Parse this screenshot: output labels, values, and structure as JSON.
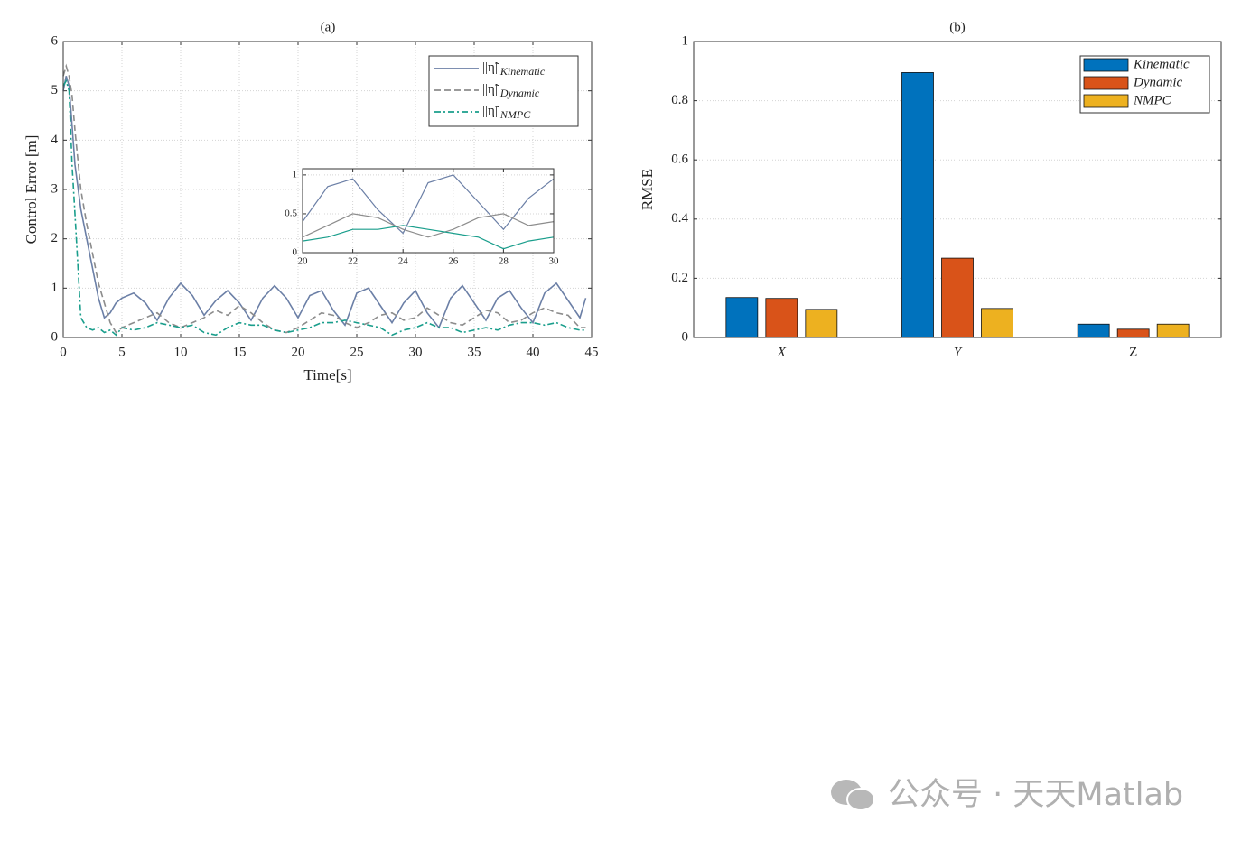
{
  "chart_data": [
    {
      "type": "line",
      "title": "(a)",
      "xlabel": "Time[s]",
      "ylabel": "Control Error [m]",
      "legend_prefix": "||η̃||",
      "legend": "upper right",
      "grid": true,
      "x": [
        0,
        0.25,
        0.5,
        0.75,
        1,
        1.5,
        2,
        2.5,
        3,
        3.5,
        4,
        4.5,
        5,
        6,
        7,
        8,
        9,
        10,
        11,
        12,
        13,
        14,
        15,
        16,
        17,
        18,
        19,
        20,
        21,
        22,
        23,
        24,
        25,
        26,
        27,
        28,
        29,
        30,
        31,
        32,
        33,
        34,
        35,
        36,
        37,
        38,
        39,
        40,
        41,
        42,
        43,
        44,
        44.5
      ],
      "xlim": [
        0,
        45
      ],
      "xticks": [
        0,
        5,
        10,
        15,
        20,
        25,
        30,
        35,
        40,
        45
      ],
      "ylim": [
        0,
        6
      ],
      "yticks": [
        0,
        1,
        2,
        3,
        4,
        5,
        6
      ],
      "series": [
        {
          "name": "Kinematic",
          "color": "#6b7fa6",
          "style": "solid",
          "values": [
            5.0,
            5.3,
            5.1,
            4.3,
            3.5,
            2.6,
            2.0,
            1.4,
            0.8,
            0.4,
            0.5,
            0.7,
            0.8,
            0.9,
            0.7,
            0.35,
            0.8,
            1.1,
            0.85,
            0.45,
            0.75,
            0.95,
            0.7,
            0.35,
            0.8,
            1.05,
            0.8,
            0.4,
            0.85,
            0.95,
            0.55,
            0.25,
            0.9,
            1.0,
            0.65,
            0.3,
            0.7,
            0.95,
            0.5,
            0.2,
            0.8,
            1.05,
            0.7,
            0.35,
            0.8,
            0.95,
            0.6,
            0.3,
            0.9,
            1.1,
            0.75,
            0.4,
            0.8
          ]
        },
        {
          "name": "Dynamic",
          "color": "#8c8c8c",
          "style": "dashed",
          "values": [
            5.3,
            5.5,
            5.3,
            4.9,
            4.2,
            3.0,
            2.3,
            1.7,
            1.1,
            0.7,
            0.3,
            0.1,
            0.2,
            0.3,
            0.4,
            0.5,
            0.3,
            0.2,
            0.3,
            0.4,
            0.55,
            0.45,
            0.65,
            0.5,
            0.3,
            0.15,
            0.1,
            0.2,
            0.35,
            0.5,
            0.45,
            0.3,
            0.2,
            0.3,
            0.45,
            0.5,
            0.35,
            0.4,
            0.6,
            0.45,
            0.3,
            0.25,
            0.4,
            0.55,
            0.5,
            0.3,
            0.35,
            0.5,
            0.6,
            0.5,
            0.45,
            0.2,
            0.2
          ]
        },
        {
          "name": "NMPC",
          "color": "#1a9e8c",
          "style": "dashdot",
          "values": [
            5.1,
            5.2,
            5.0,
            3.5,
            2.5,
            0.4,
            0.2,
            0.15,
            0.2,
            0.1,
            0.15,
            0.05,
            0.2,
            0.15,
            0.2,
            0.3,
            0.25,
            0.2,
            0.25,
            0.1,
            0.05,
            0.2,
            0.3,
            0.25,
            0.25,
            0.15,
            0.1,
            0.15,
            0.2,
            0.3,
            0.3,
            0.35,
            0.3,
            0.25,
            0.2,
            0.05,
            0.15,
            0.2,
            0.3,
            0.2,
            0.2,
            0.1,
            0.15,
            0.2,
            0.15,
            0.25,
            0.3,
            0.3,
            0.25,
            0.3,
            0.2,
            0.15,
            0.15
          ]
        }
      ],
      "inset": {
        "xlim": [
          20,
          30
        ],
        "xticks": [
          20,
          22,
          24,
          26,
          28,
          30
        ],
        "ylim": [
          0,
          1.08
        ],
        "yticks": [
          0,
          0.5,
          1
        ]
      }
    },
    {
      "type": "bar",
      "title": "(b)",
      "ylabel": "RMSE",
      "legend": "upper right",
      "grid": true,
      "categories": [
        "X",
        "Y",
        "Z"
      ],
      "ylim": [
        0,
        1
      ],
      "yticks": [
        0,
        0.2,
        0.4,
        0.6,
        0.8,
        1
      ],
      "series": [
        {
          "name": "Kinematic",
          "color": "#0072bd",
          "values": [
            0.135,
            0.895,
            0.045
          ]
        },
        {
          "name": "Dynamic",
          "color": "#d95319",
          "values": [
            0.132,
            0.268,
            0.028
          ]
        },
        {
          "name": "NMPC",
          "color": "#edb120",
          "values": [
            0.095,
            0.098,
            0.045
          ]
        }
      ]
    }
  ],
  "watermark": "公众号 · 天天Matlab"
}
